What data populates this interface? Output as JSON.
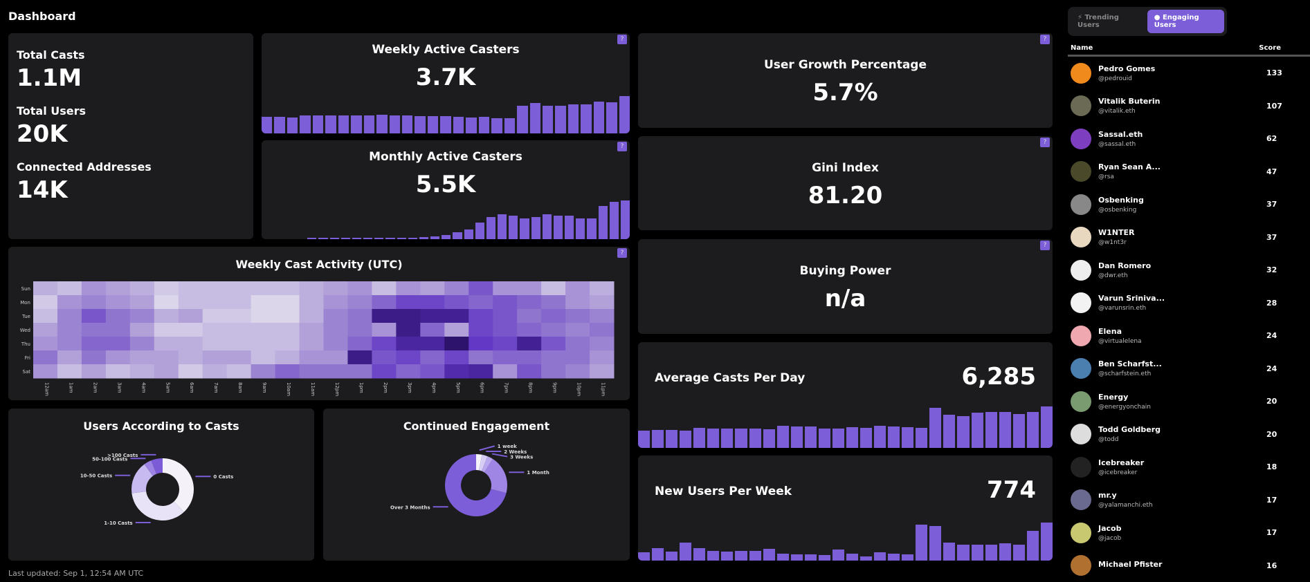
{
  "header": {
    "title": "Dashboard"
  },
  "footer": {
    "last_updated": "Last updated: Sep 1, 12:54 AM UTC"
  },
  "help_label": "?",
  "stats": [
    {
      "label": "Total Casts",
      "value": "1.1M"
    },
    {
      "label": "Total Users",
      "value": "20K"
    },
    {
      "label": "Connected Addresses",
      "value": "14K"
    }
  ],
  "weekly_active": {
    "title": "Weekly Active Casters",
    "value": "3.7K",
    "bars": [
      30,
      30,
      29,
      32,
      32,
      32,
      32,
      32,
      32,
      34,
      33,
      33,
      31,
      31,
      31,
      30,
      29,
      30,
      28,
      27,
      50,
      55,
      50,
      50,
      52,
      52,
      57,
      56,
      68
    ]
  },
  "monthly_active": {
    "title": "Monthly Active Casters",
    "value": "5.5K",
    "bars": [
      0,
      2,
      2,
      2,
      2,
      2,
      2,
      3,
      3,
      3,
      3,
      4,
      5,
      8,
      12,
      18,
      30,
      40,
      45,
      42,
      38,
      40,
      45,
      43,
      42,
      38,
      38,
      60,
      68,
      70
    ]
  },
  "user_growth": {
    "title": "User Growth Percentage",
    "value": "5.7%"
  },
  "gini": {
    "title": "Gini Index",
    "value": "81.20"
  },
  "buying_power": {
    "title": "Buying Power",
    "value": "n/a"
  },
  "avg_casts": {
    "title": "Average Casts Per Day",
    "value": "6,285",
    "bars": [
      33,
      34,
      34,
      33,
      38,
      37,
      37,
      36,
      36,
      35,
      42,
      40,
      40,
      37,
      37,
      39,
      38,
      42,
      40,
      39,
      38,
      75,
      62,
      60,
      66,
      68,
      68,
      64,
      67,
      78
    ]
  },
  "new_users": {
    "title": "New Users Per Week",
    "value": "774",
    "bars": [
      18,
      28,
      20,
      40,
      28,
      22,
      20,
      22,
      22,
      27,
      15,
      14,
      14,
      12,
      25,
      15,
      10,
      18,
      16,
      14,
      80,
      78,
      40,
      36,
      36,
      36,
      38,
      36,
      67,
      85
    ]
  },
  "heatmap": {
    "title": "Weekly Cast Activity (UTC)",
    "rows": [
      "Sun",
      "Mon",
      "Tue",
      "Wed",
      "Thu",
      "Fri",
      "Sat"
    ],
    "cols": [
      "12am",
      "1am",
      "2am",
      "3am",
      "4am",
      "5am",
      "6am",
      "7am",
      "8am",
      "9am",
      "10am",
      "11am",
      "12pm",
      "1pm",
      "2pm",
      "3pm",
      "4pm",
      "5pm",
      "6pm",
      "7pm",
      "8pm",
      "9pm",
      "10pm",
      "11pm"
    ],
    "values": [
      [
        0.25,
        0.2,
        0.35,
        0.3,
        0.25,
        0.15,
        0.2,
        0.2,
        0.2,
        0.2,
        0.2,
        0.25,
        0.3,
        0.35,
        0.2,
        0.35,
        0.3,
        0.4,
        0.55,
        0.35,
        0.35,
        0.2,
        0.35,
        0.25
      ],
      [
        0.15,
        0.35,
        0.4,
        0.35,
        0.3,
        0.1,
        0.2,
        0.2,
        0.2,
        0.1,
        0.1,
        0.25,
        0.35,
        0.4,
        0.5,
        0.6,
        0.6,
        0.55,
        0.5,
        0.55,
        0.5,
        0.45,
        0.35,
        0.3
      ],
      [
        0.2,
        0.4,
        0.55,
        0.45,
        0.4,
        0.25,
        0.3,
        0.15,
        0.15,
        0.1,
        0.1,
        0.25,
        0.4,
        0.45,
        0.9,
        0.9,
        0.85,
        0.85,
        0.6,
        0.55,
        0.45,
        0.5,
        0.45,
        0.4
      ],
      [
        0.3,
        0.4,
        0.45,
        0.45,
        0.3,
        0.15,
        0.15,
        0.2,
        0.2,
        0.2,
        0.2,
        0.3,
        0.4,
        0.45,
        0.35,
        0.9,
        0.5,
        0.3,
        0.6,
        0.55,
        0.5,
        0.45,
        0.4,
        0.45
      ],
      [
        0.35,
        0.4,
        0.5,
        0.5,
        0.4,
        0.25,
        0.25,
        0.2,
        0.2,
        0.2,
        0.2,
        0.3,
        0.4,
        0.5,
        0.6,
        0.8,
        0.8,
        1,
        0.65,
        0.6,
        0.85,
        0.55,
        0.45,
        0.4
      ],
      [
        0.45,
        0.3,
        0.45,
        0.35,
        0.3,
        0.3,
        0.25,
        0.3,
        0.3,
        0.2,
        0.25,
        0.35,
        0.35,
        0.9,
        0.55,
        0.6,
        0.5,
        0.6,
        0.45,
        0.5,
        0.5,
        0.45,
        0.45,
        0.35
      ],
      [
        0.35,
        0.2,
        0.3,
        0.2,
        0.25,
        0.3,
        0.15,
        0.25,
        0.2,
        0.4,
        0.5,
        0.45,
        0.45,
        0.45,
        0.6,
        0.5,
        0.55,
        0.75,
        0.8,
        0.35,
        0.55,
        0.45,
        0.4,
        0.3
      ]
    ]
  },
  "users_by_casts": {
    "title": "Users According to Casts",
    "slices": [
      {
        "label": "0 Casts",
        "value": 38,
        "color": "#f4f2f8"
      },
      {
        "label": "1-10 Casts",
        "value": 35,
        "color": "#e8e3f6"
      },
      {
        "label": "10-50 Casts",
        "value": 17,
        "color": "#c7baf0"
      },
      {
        "label": "50-100 Casts",
        "value": 4,
        "color": "#9d84e4"
      },
      {
        "label": ">100 Casts",
        "value": 6,
        "color": "#7b5bd6"
      }
    ]
  },
  "engagement": {
    "title": "Continued Engagement",
    "slices": [
      {
        "label": "1 week",
        "value": 3,
        "color": "#f4f2f8"
      },
      {
        "label": "2 Weeks",
        "value": 3,
        "color": "#d6ccf4"
      },
      {
        "label": "3 Weeks",
        "value": 3,
        "color": "#b8a6ee"
      },
      {
        "label": "1 Month",
        "value": 20,
        "color": "#9f86e4"
      },
      {
        "label": "Over 3 Months",
        "value": 71,
        "color": "#7c5fd8"
      }
    ]
  },
  "panel": {
    "tabs": [
      {
        "label": "Trending Users",
        "icon": "bolt-icon",
        "active": false
      },
      {
        "label": "Engaging Users",
        "icon": "bulb-icon",
        "active": true
      }
    ],
    "col_name": "Name",
    "col_score": "Score",
    "users": [
      {
        "name": "Pedro Gomes",
        "handle": "@pedrouid",
        "score": "133",
        "color": "#f08a1c"
      },
      {
        "name": "Vitalik Buterin",
        "handle": "@vitalik.eth",
        "score": "107",
        "color": "#6b6a55"
      },
      {
        "name": "Sassal.eth",
        "handle": "@sassal.eth",
        "score": "62",
        "color": "#7d3fc0"
      },
      {
        "name": "Ryan Sean A...",
        "handle": "@rsa",
        "score": "47",
        "color": "#4a4a2a"
      },
      {
        "name": "Osbenking",
        "handle": "@osbenking",
        "score": "37",
        "color": "#888"
      },
      {
        "name": "W1NTER",
        "handle": "@w1nt3r",
        "score": "37",
        "color": "#e8d8c0"
      },
      {
        "name": "Dan Romero",
        "handle": "@dwr.eth",
        "score": "32",
        "color": "#eee"
      },
      {
        "name": "Varun Sriniva...",
        "handle": "@varunsrin.eth",
        "score": "28",
        "color": "#f2f2f2"
      },
      {
        "name": "Elena",
        "handle": "@virtualelena",
        "score": "24",
        "color": "#f0a8b0"
      },
      {
        "name": "Ben Scharfst...",
        "handle": "@scharfstein.eth",
        "score": "24",
        "color": "#4a7fb0"
      },
      {
        "name": "Energy",
        "handle": "@energyonchain",
        "score": "20",
        "color": "#7a9a70"
      },
      {
        "name": "Todd Goldberg",
        "handle": "@todd",
        "score": "20",
        "color": "#ddd"
      },
      {
        "name": "Icebreaker",
        "handle": "@icebreaker",
        "score": "18",
        "color": "#222"
      },
      {
        "name": "mr.y",
        "handle": "@yalamanchi.eth",
        "score": "17",
        "color": "#6a6a90"
      },
      {
        "name": "Jacob",
        "handle": "@jacob",
        "score": "17",
        "color": "#c8c870"
      },
      {
        "name": "Michael Pfister",
        "handle": "",
        "score": "16",
        "color": "#b07030"
      }
    ]
  }
}
